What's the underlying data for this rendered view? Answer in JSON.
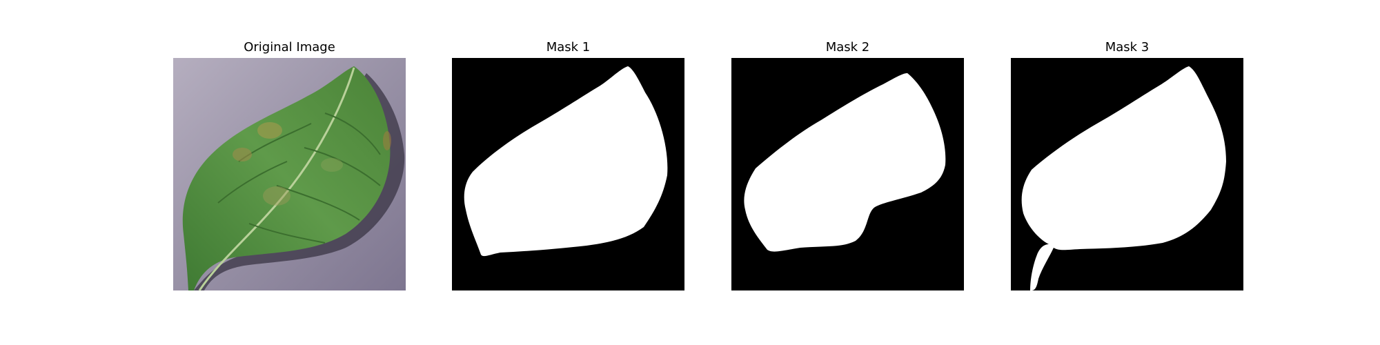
{
  "panels": [
    {
      "title": "Original Image"
    },
    {
      "title": "Mask 1"
    },
    {
      "title": "Mask 2"
    },
    {
      "title": "Mask 3"
    }
  ],
  "colors": {
    "background": "#ffffff",
    "mask_background": "#000000",
    "mask_foreground": "#ffffff",
    "leaf": "#4f8a3f",
    "backdrop": "#9a92a8"
  }
}
